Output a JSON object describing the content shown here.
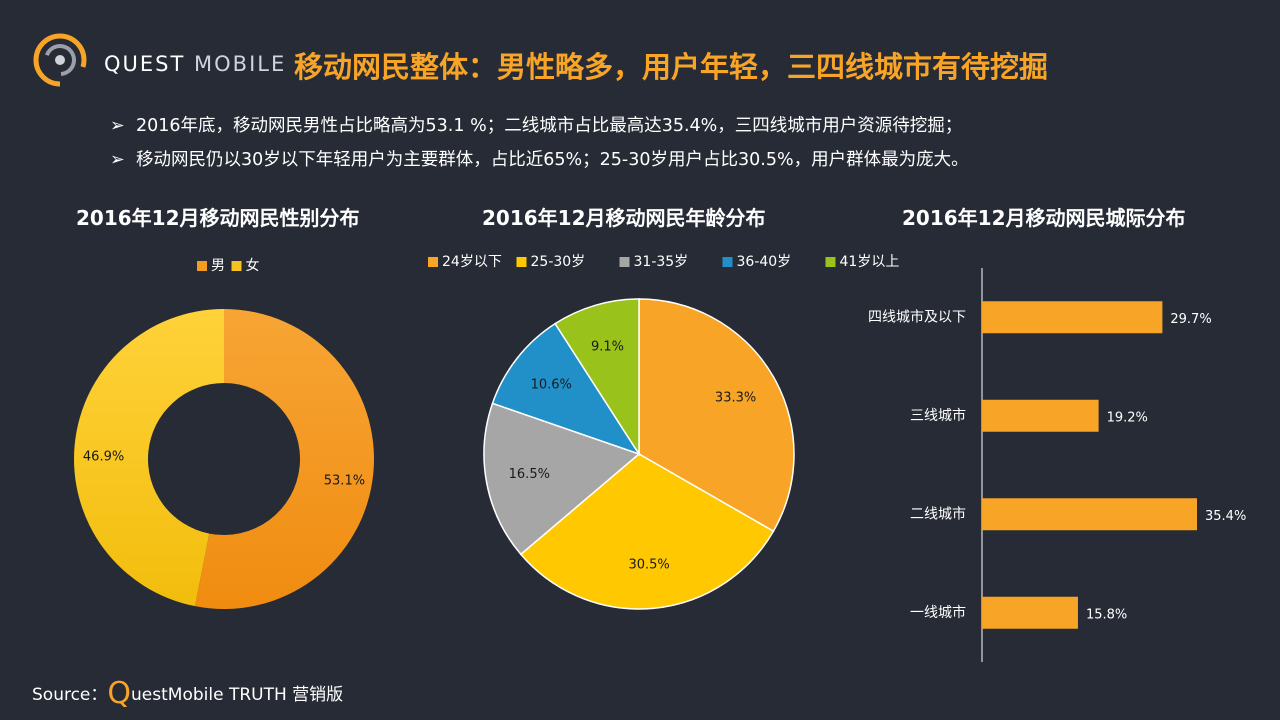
{
  "header": {
    "logo_text": "QUEST",
    "logo_text_light": "MOBILE",
    "title": "移动网民整体：男性略多，用户年轻，三四线城市有待挖掘"
  },
  "bullets": [
    "2016年底，移动网民男性占比略高为53.1 %；二线城市占比最高达35.4%，三四线城市用户资源待挖掘；",
    "移动网民仍以30岁以下年轻用户为主要群体，占比近65%；25-30岁用户占比30.5%，用户群体最为庞大。"
  ],
  "bullet_marker": "➢",
  "footer": {
    "source_prefix": "Source：",
    "source_q": "Q",
    "source_rest": "uestMobile TRUTH 营销版"
  },
  "colors": {
    "background": "#262b35",
    "accent": "#f7a427",
    "male": "#f49b24",
    "female": "#f7c31e",
    "age_24_below": "#f7a427",
    "age_25_30": "#ffc800",
    "age_31_35": "#a6a6a6",
    "age_36_40": "#2290c8",
    "age_41_above": "#99c31b",
    "city_bar": "#f7a427"
  },
  "chart_data": [
    {
      "type": "pie",
      "variant": "donut",
      "title": "2016年12月移动网民性别分布",
      "legend": "top",
      "labels": [
        "男",
        "女"
      ],
      "values": [
        53.1,
        46.9
      ],
      "value_labels": [
        "53.1%",
        "46.9%"
      ]
    },
    {
      "type": "pie",
      "title": "2016年12月移动网民年龄分布",
      "legend": "top",
      "labels": [
        "24岁以下",
        "25-30岁",
        "31-35岁",
        "36-40岁",
        "41岁以上"
      ],
      "values": [
        33.3,
        30.5,
        16.5,
        10.6,
        9.1
      ],
      "value_labels": [
        "33.3%",
        "30.5%",
        "16.5%",
        "10.6%",
        "9.1%"
      ]
    },
    {
      "type": "bar",
      "orientation": "horizontal",
      "title": "2016年12月移动网民城际分布",
      "categories": [
        "四线城市及以下",
        "三线城市",
        "二线城市",
        "一线城市"
      ],
      "values": [
        29.7,
        19.2,
        35.4,
        15.8
      ],
      "value_labels": [
        "29.7%",
        "19.2%",
        "35.4%",
        "15.8%"
      ],
      "xlim": [
        0,
        40
      ],
      "grid": false
    }
  ]
}
